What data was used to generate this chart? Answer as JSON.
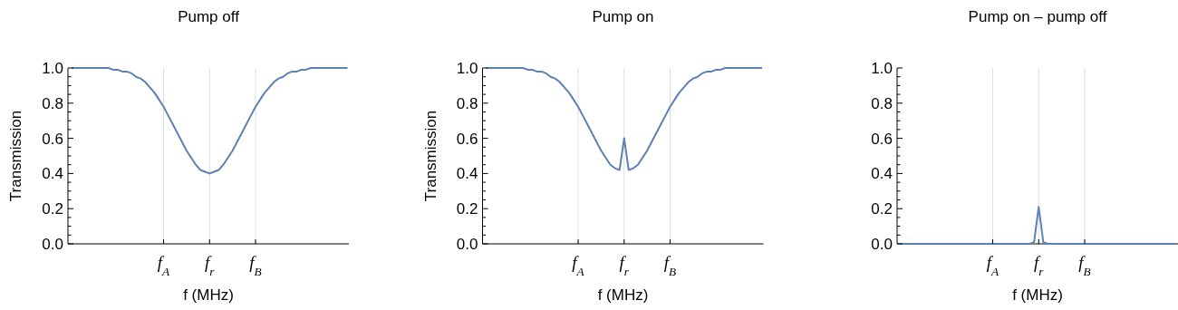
{
  "chart_data": [
    {
      "type": "line",
      "title": "Pump off",
      "xlabel": "f (MHz)",
      "ylabel": "Transmission",
      "categories": [
        null,
        null,
        null,
        null,
        null,
        null,
        null,
        null,
        null,
        null,
        null,
        null,
        null,
        null,
        null,
        null,
        null,
        null,
        null,
        null,
        "f$_{A}$",
        null,
        null,
        null,
        null,
        null,
        null,
        null,
        null,
        null,
        "f$_{r}$",
        null,
        null,
        null,
        null,
        null,
        null,
        null,
        null,
        null,
        "f$_{B}$",
        null,
        null,
        null,
        null,
        null,
        null,
        null,
        null,
        null,
        null,
        null,
        null,
        null,
        null,
        null,
        null,
        null,
        null,
        null,
        null
      ],
      "series": [
        {
          "color": "#5e81b5",
          "values": [
            1,
            1,
            1,
            1,
            1,
            1,
            1,
            1,
            1,
            0.99,
            0.99,
            0.98,
            0.98,
            0.97,
            0.95,
            0.94,
            0.92,
            0.89,
            0.86,
            0.82,
            0.78,
            0.73,
            0.68,
            0.63,
            0.58,
            0.53,
            0.49,
            0.45,
            0.42,
            0.41,
            0.4,
            0.41,
            0.42,
            0.45,
            0.49,
            0.53,
            0.58,
            0.63,
            0.68,
            0.73,
            0.78,
            0.82,
            0.86,
            0.89,
            0.92,
            0.94,
            0.95,
            0.97,
            0.98,
            0.98,
            0.99,
            0.99,
            1,
            1,
            1,
            1,
            1,
            1,
            1,
            1,
            1
          ]
        }
      ],
      "ylim": [
        0,
        1
      ],
      "yticks": [
        {
          "value": 0,
          "label": "0.0"
        },
        {
          "value": 0.05,
          "label": null
        },
        {
          "value": 0.1,
          "label": null
        },
        {
          "value": 0.15,
          "label": null
        },
        {
          "value": 0.2,
          "label": "0.2"
        },
        {
          "value": 0.25,
          "label": null
        },
        {
          "value": 0.3,
          "label": null
        },
        {
          "value": 0.35,
          "label": null
        },
        {
          "value": 0.4,
          "label": "0.4"
        },
        {
          "value": 0.45,
          "label": null
        },
        {
          "value": 0.5,
          "label": null
        },
        {
          "value": 0.55,
          "label": null
        },
        {
          "value": 0.6,
          "label": "0.6"
        },
        {
          "value": 0.65,
          "label": null
        },
        {
          "value": 0.7,
          "label": null
        },
        {
          "value": 0.75,
          "label": null
        },
        {
          "value": 0.8,
          "label": "0.8"
        },
        {
          "value": 0.85,
          "label": null
        },
        {
          "value": 0.9,
          "label": null
        },
        {
          "value": 0.95,
          "label": null
        },
        {
          "value": 1,
          "label": "1.0"
        }
      ],
      "grid": "x"
    },
    {
      "type": "line",
      "title": "Pump on",
      "xlabel": "f (MHz)",
      "ylabel": "Transmission",
      "categories": [
        null,
        null,
        null,
        null,
        null,
        null,
        null,
        null,
        null,
        null,
        null,
        null,
        null,
        null,
        null,
        null,
        null,
        null,
        null,
        null,
        "f$_{A}$",
        null,
        null,
        null,
        null,
        null,
        null,
        null,
        null,
        null,
        "f$_{r}$",
        null,
        null,
        null,
        null,
        null,
        null,
        null,
        null,
        null,
        "f$_{B}$",
        null,
        null,
        null,
        null,
        null,
        null,
        null,
        null,
        null,
        null,
        null,
        null,
        null,
        null,
        null,
        null,
        null,
        null,
        null,
        null
      ],
      "series": [
        {
          "color": "#5e81b5",
          "values": [
            1,
            1,
            1,
            1,
            1,
            1,
            1,
            1,
            1,
            0.99,
            0.99,
            0.98,
            0.98,
            0.97,
            0.95,
            0.94,
            0.92,
            0.89,
            0.86,
            0.82,
            0.78,
            0.73,
            0.68,
            0.63,
            0.58,
            0.53,
            0.49,
            0.45,
            0.43,
            0.42,
            0.6,
            0.42,
            0.43,
            0.45,
            0.49,
            0.53,
            0.58,
            0.63,
            0.68,
            0.73,
            0.78,
            0.82,
            0.86,
            0.89,
            0.92,
            0.94,
            0.95,
            0.97,
            0.98,
            0.98,
            0.99,
            0.99,
            1,
            1,
            1,
            1,
            1,
            1,
            1,
            1,
            1
          ]
        }
      ],
      "ylim": [
        0,
        1
      ],
      "yticks": [
        {
          "value": 0,
          "label": "0.0"
        },
        {
          "value": 0.05,
          "label": null
        },
        {
          "value": 0.1,
          "label": null
        },
        {
          "value": 0.15,
          "label": null
        },
        {
          "value": 0.2,
          "label": "0.2"
        },
        {
          "value": 0.25,
          "label": null
        },
        {
          "value": 0.3,
          "label": null
        },
        {
          "value": 0.35,
          "label": null
        },
        {
          "value": 0.4,
          "label": "0.4"
        },
        {
          "value": 0.45,
          "label": null
        },
        {
          "value": 0.5,
          "label": null
        },
        {
          "value": 0.55,
          "label": null
        },
        {
          "value": 0.6,
          "label": "0.6"
        },
        {
          "value": 0.65,
          "label": null
        },
        {
          "value": 0.7,
          "label": null
        },
        {
          "value": 0.75,
          "label": null
        },
        {
          "value": 0.8,
          "label": "0.8"
        },
        {
          "value": 0.85,
          "label": null
        },
        {
          "value": 0.9,
          "label": null
        },
        {
          "value": 0.95,
          "label": null
        },
        {
          "value": 1,
          "label": "1.0"
        }
      ],
      "grid": "x"
    },
    {
      "type": "line",
      "title": "Pump on – pump off",
      "xlabel": "f (MHz)",
      "categories": [
        null,
        null,
        null,
        null,
        null,
        null,
        null,
        null,
        null,
        null,
        null,
        null,
        null,
        null,
        null,
        null,
        null,
        null,
        null,
        null,
        "f$_{A}$",
        null,
        null,
        null,
        null,
        null,
        null,
        null,
        null,
        null,
        "f$_{r}$",
        null,
        null,
        null,
        null,
        null,
        null,
        null,
        null,
        null,
        "f$_{B}$",
        null,
        null,
        null,
        null,
        null,
        null,
        null,
        null,
        null,
        null,
        null,
        null,
        null,
        null,
        null,
        null,
        null,
        null,
        null,
        null
      ],
      "series": [
        {
          "color": "#5e81b5",
          "values": [
            0,
            0,
            0,
            0,
            0,
            0,
            0,
            0,
            0,
            0,
            0,
            0,
            0,
            0,
            0,
            0,
            0,
            0,
            0,
            0,
            0,
            0,
            0,
            0,
            0,
            0,
            0,
            0,
            0,
            0.01,
            0.21,
            0.01,
            0,
            0,
            0,
            0,
            0,
            0,
            0,
            0,
            0,
            0,
            0,
            0,
            0,
            0,
            0,
            0,
            0,
            0,
            0,
            0,
            0,
            0,
            0,
            0,
            0,
            0,
            0,
            0,
            0
          ]
        }
      ],
      "ylim": [
        0,
        1
      ],
      "yticks": [
        {
          "value": 0,
          "label": "0.0"
        },
        {
          "value": 0.05,
          "label": null
        },
        {
          "value": 0.1,
          "label": null
        },
        {
          "value": 0.15,
          "label": null
        },
        {
          "value": 0.2,
          "label": "0.2"
        },
        {
          "value": 0.25,
          "label": null
        },
        {
          "value": 0.3,
          "label": null
        },
        {
          "value": 0.35,
          "label": null
        },
        {
          "value": 0.4,
          "label": "0.4"
        },
        {
          "value": 0.45,
          "label": null
        },
        {
          "value": 0.5,
          "label": null
        },
        {
          "value": 0.55,
          "label": null
        },
        {
          "value": 0.6,
          "label": "0.6"
        },
        {
          "value": 0.65,
          "label": null
        },
        {
          "value": 0.7,
          "label": null
        },
        {
          "value": 0.75,
          "label": null
        },
        {
          "value": 0.8,
          "label": "0.8"
        },
        {
          "value": 0.85,
          "label": null
        },
        {
          "value": 0.9,
          "label": null
        },
        {
          "value": 0.95,
          "label": null
        },
        {
          "value": 1,
          "label": "1.0"
        }
      ],
      "grid": "x"
    }
  ]
}
